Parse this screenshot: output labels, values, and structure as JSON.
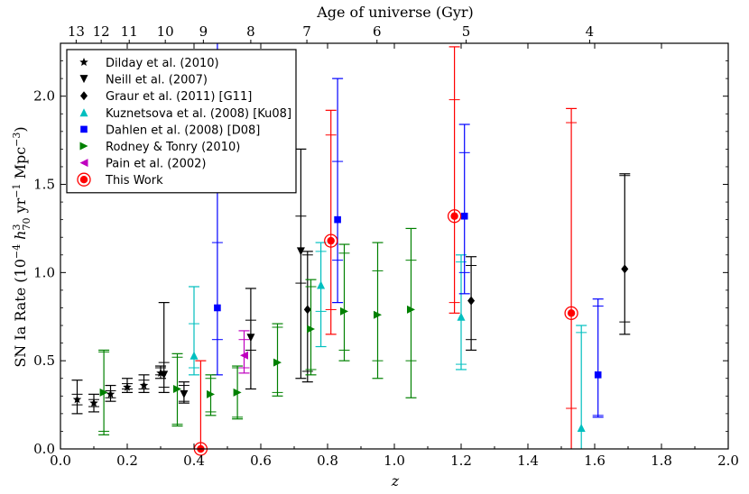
{
  "chart_data": {
    "type": "scatter",
    "title": "Age of universe (Gyr)",
    "xlabel": "z",
    "ylabel": "SN Ia Rate (10^-4 h_70^3 yr^-1 Mpc^-3)",
    "ylabel_parts": {
      "prefix": "SN Ia Rate (10",
      "exp1": "−4",
      "h": "h",
      "h_sup": "3",
      "h_sub": "70",
      "yr": "yr",
      "exp2": "−1",
      "mpc": "Mpc",
      "exp3": "−3",
      "close": ")"
    },
    "xlim": [
      0.0,
      2.0
    ],
    "ylim": [
      0.0,
      2.3
    ],
    "xticks": [
      0.0,
      0.2,
      0.4,
      0.6,
      0.8,
      1.0,
      1.2,
      1.4,
      1.6,
      1.8,
      2.0
    ],
    "xtick_labels": [
      "0.0",
      "0.2",
      "0.4",
      "0.6",
      "0.8",
      "1.0",
      "1.2",
      "1.4",
      "1.6",
      "1.8",
      "2.0"
    ],
    "yticks": [
      0.0,
      0.5,
      1.0,
      1.5,
      2.0
    ],
    "ytick_labels": [
      "0.0",
      "0.5",
      "1.0",
      "1.5",
      "2.0"
    ],
    "top_axis": {
      "label": "Age of universe (Gyr)",
      "ticks": [
        {
          "z": 0.047,
          "label": "13"
        },
        {
          "z": 0.122,
          "label": "12"
        },
        {
          "z": 0.206,
          "label": "11"
        },
        {
          "z": 0.314,
          "label": "10"
        },
        {
          "z": 0.428,
          "label": "9"
        },
        {
          "z": 0.57,
          "label": "8"
        },
        {
          "z": 0.738,
          "label": "7"
        },
        {
          "z": 0.948,
          "label": "6"
        },
        {
          "z": 1.215,
          "label": "5"
        },
        {
          "z": 1.585,
          "label": "4"
        }
      ]
    },
    "legend_position": "top-left",
    "series": [
      {
        "name": "Dilday et al. (2010)",
        "marker": "star",
        "color": "#000000",
        "points": [
          {
            "x": 0.05,
            "y": 0.28,
            "ystat": [
              0.25,
              0.31
            ],
            "ytot": [
              0.2,
              0.39
            ]
          },
          {
            "x": 0.1,
            "y": 0.26,
            "ystat": [
              0.24,
              0.28
            ],
            "ytot": [
              0.21,
              0.31
            ]
          },
          {
            "x": 0.15,
            "y": 0.31,
            "ystat": [
              0.29,
              0.33
            ],
            "ytot": [
              0.27,
              0.36
            ]
          },
          {
            "x": 0.2,
            "y": 0.35,
            "ystat": [
              0.34,
              0.37
            ],
            "ytot": [
              0.32,
              0.4
            ]
          },
          {
            "x": 0.25,
            "y": 0.36,
            "ystat": [
              0.34,
              0.39
            ],
            "ytot": [
              0.32,
              0.42
            ]
          },
          {
            "x": 0.3,
            "y": 0.43,
            "ystat": [
              0.42,
              0.46
            ],
            "ytot": [
              0.4,
              0.47
            ]
          }
        ]
      },
      {
        "name": "Neill et al. (2007)",
        "marker": "triangle-down",
        "color": "#000000",
        "points": [
          {
            "x": 0.31,
            "y": 0.42,
            "ystat": [
              0.35,
              0.49
            ],
            "ytot": [
              0.32,
              0.83
            ]
          },
          {
            "x": 0.37,
            "y": 0.31,
            "ystat": [
              0.27,
              0.36
            ],
            "ytot": [
              0.26,
              0.38
            ]
          },
          {
            "x": 0.57,
            "y": 0.63,
            "ystat": [
              0.56,
              0.73
            ],
            "ytot": [
              0.34,
              0.91
            ]
          },
          {
            "x": 0.72,
            "y": 1.12,
            "ystat": [
              0.94,
              1.32
            ],
            "ytot": [
              0.4,
              1.7
            ]
          }
        ]
      },
      {
        "name": "Graur et al. (2011) [G11]",
        "marker": "diamond",
        "color": "#000000",
        "points": [
          {
            "x": 0.74,
            "y": 0.79,
            "ystat": [
              0.44,
              1.1
            ],
            "ytot": [
              0.38,
              1.12
            ]
          },
          {
            "x": 1.23,
            "y": 0.84,
            "ystat": [
              0.62,
              1.04
            ],
            "ytot": [
              0.56,
              1.09
            ]
          },
          {
            "x": 1.69,
            "y": 1.02,
            "ystat": [
              0.72,
              1.55
            ],
            "ytot": [
              0.65,
              1.56
            ]
          }
        ]
      },
      {
        "name": "Kuznetsova et al. (2008) [Ku08]",
        "marker": "triangle-up",
        "color": "#00BFBF",
        "points": [
          {
            "x": 0.4,
            "y": 0.53,
            "ystat": [
              0.46,
              0.71
            ],
            "ytot": [
              0.42,
              0.92
            ]
          },
          {
            "x": 0.78,
            "y": 0.93,
            "ystat": [
              0.78,
              1.12
            ],
            "ytot": [
              0.58,
              1.17
            ]
          },
          {
            "x": 1.2,
            "y": 0.75,
            "ystat": [
              0.48,
              1.06
            ],
            "ytot": [
              0.45,
              1.1
            ]
          },
          {
            "x": 1.56,
            "y": 0.12,
            "ystat": [
              0.0,
              0.66
            ],
            "ytot": [
              0.0,
              0.7
            ]
          }
        ]
      },
      {
        "name": "Dahlen et al. (2008) [D08]",
        "marker": "square",
        "color": "#0000FF",
        "points": [
          {
            "x": 0.47,
            "y": 0.8,
            "ystat": [
              0.62,
              1.17
            ],
            "ytot": [
              0.42,
              2.3
            ]
          },
          {
            "x": 0.83,
            "y": 1.3,
            "ystat": [
              1.07,
              1.63
            ],
            "ytot": [
              0.83,
              2.1
            ]
          },
          {
            "x": 1.21,
            "y": 1.32,
            "ystat": [
              1.0,
              1.68
            ],
            "ytot": [
              0.88,
              1.84
            ]
          },
          {
            "x": 1.61,
            "y": 0.42,
            "ystat": [
              0.19,
              0.81
            ],
            "ytot": [
              0.18,
              0.85
            ]
          }
        ]
      },
      {
        "name": "Rodney & Tonry (2010)",
        "marker": "triangle-right",
        "color": "#008000",
        "points": [
          {
            "x": 0.13,
            "y": 0.32,
            "ystat": [
              0.1,
              0.55
            ],
            "ytot": [
              0.08,
              0.56
            ]
          },
          {
            "x": 0.35,
            "y": 0.34,
            "ystat": [
              0.14,
              0.52
            ],
            "ytot": [
              0.13,
              0.54
            ]
          },
          {
            "x": 0.45,
            "y": 0.31,
            "ystat": [
              0.21,
              0.4
            ],
            "ytot": [
              0.19,
              0.42
            ]
          },
          {
            "x": 0.53,
            "y": 0.32,
            "ystat": [
              0.18,
              0.46
            ],
            "ytot": [
              0.17,
              0.47
            ]
          },
          {
            "x": 0.65,
            "y": 0.49,
            "ystat": [
              0.32,
              0.69
            ],
            "ytot": [
              0.3,
              0.71
            ]
          },
          {
            "x": 0.75,
            "y": 0.68,
            "ystat": [
              0.45,
              0.92
            ],
            "ytot": [
              0.42,
              0.96
            ]
          },
          {
            "x": 0.85,
            "y": 0.78,
            "ystat": [
              0.56,
              1.11
            ],
            "ytot": [
              0.5,
              1.16
            ]
          },
          {
            "x": 0.95,
            "y": 0.76,
            "ystat": [
              0.5,
              1.01
            ],
            "ytot": [
              0.4,
              1.17
            ]
          },
          {
            "x": 1.05,
            "y": 0.79,
            "ystat": [
              0.5,
              1.07
            ],
            "ytot": [
              0.29,
              1.25
            ]
          }
        ]
      },
      {
        "name": "Pain et al. (2002)",
        "marker": "triangle-left",
        "color": "#BF00BF",
        "points": [
          {
            "x": 0.55,
            "y": 0.53,
            "ystat": [
              0.46,
              0.62
            ],
            "ytot": [
              0.43,
              0.67
            ]
          }
        ]
      },
      {
        "name": "This Work",
        "marker": "circle",
        "color": "#FF0000",
        "points": [
          {
            "x": 0.42,
            "y": 0.0,
            "ystat": [
              0.0,
              0.0
            ],
            "ytot": [
              0.0,
              0.5
            ]
          },
          {
            "x": 0.81,
            "y": 1.18,
            "ystat": [
              0.79,
              1.78
            ],
            "ytot": [
              0.65,
              1.92
            ]
          },
          {
            "x": 1.18,
            "y": 1.32,
            "ystat": [
              0.83,
              1.98
            ],
            "ytot": [
              0.77,
              2.28
            ]
          },
          {
            "x": 1.53,
            "y": 0.77,
            "ystat": [
              0.23,
              1.85
            ],
            "ytot": [
              0.0,
              1.93
            ]
          }
        ]
      }
    ]
  }
}
